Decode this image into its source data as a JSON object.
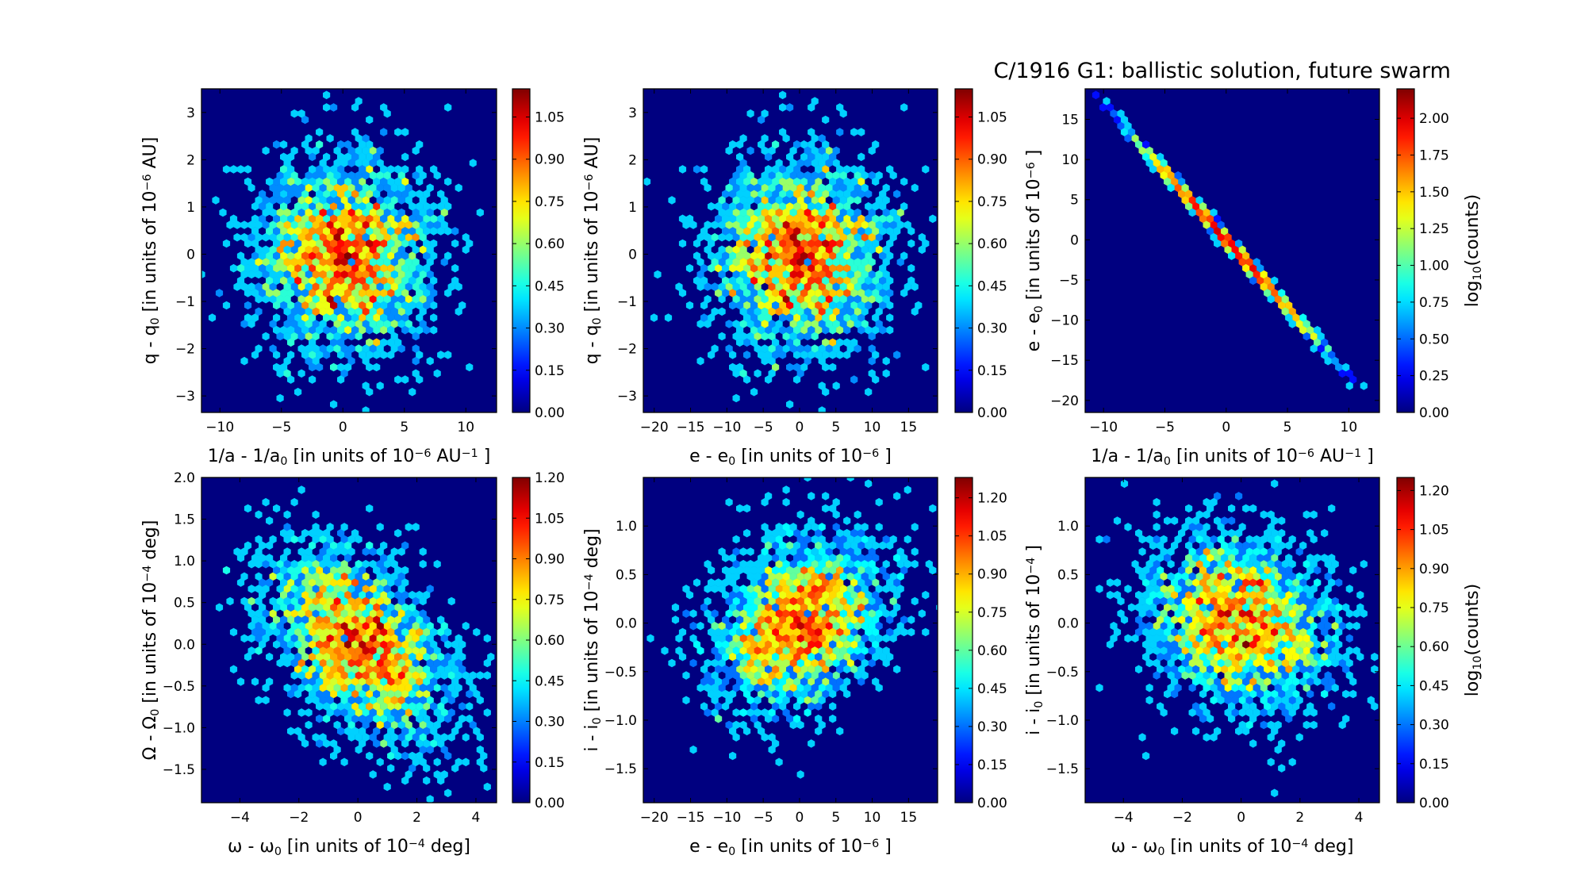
{
  "chart_data": [
    {
      "type": "heatmap",
      "subtype": "hexbin",
      "title": "",
      "xlabel": [
        {
          "t": "1/a - 1/a"
        },
        {
          "t": "0",
          "s": "sub"
        },
        {
          "t": " [in units of 10"
        },
        {
          "t": "−6",
          "s": "sup"
        },
        {
          "t": " AU"
        },
        {
          "t": "−1",
          "s": "sup"
        },
        {
          "t": " ]"
        }
      ],
      "ylabel": [
        {
          "t": "q - q"
        },
        {
          "t": "0",
          "s": "sub"
        },
        {
          "t": " [in units of 10"
        },
        {
          "t": "−6",
          "s": "sup"
        },
        {
          "t": " AU]"
        }
      ],
      "xlim": [
        -11.5,
        12.5
      ],
      "ylim": [
        -3.35,
        3.5
      ],
      "xticks": [
        "-10",
        "-5",
        "0",
        "5",
        "10"
      ],
      "yticks": [
        "-3",
        "-2",
        "-1",
        "0",
        "1",
        "2",
        "3"
      ],
      "colorbar": {
        "label": [],
        "range": [
          0,
          1.15
        ],
        "ticks": [
          "0.00",
          "0.15",
          "0.30",
          "0.45",
          "0.60",
          "0.75",
          "0.90",
          "1.05"
        ]
      },
      "distribution": {
        "n": 2600,
        "mean": [
          0,
          0
        ],
        "sd": [
          3.6,
          1.05
        ],
        "corr": 0.0,
        "slope": null,
        "seed": 11
      }
    },
    {
      "type": "heatmap",
      "subtype": "hexbin",
      "title": "",
      "xlabel": [
        {
          "t": "e - e"
        },
        {
          "t": "0",
          "s": "sub"
        },
        {
          "t": " [in units of 10"
        },
        {
          "t": "−6",
          "s": "sup"
        },
        {
          "t": " ]"
        }
      ],
      "ylabel": [
        {
          "t": "q - q"
        },
        {
          "t": "0",
          "s": "sub"
        },
        {
          "t": " [in units of 10"
        },
        {
          "t": "−6",
          "s": "sup"
        },
        {
          "t": " AU]"
        }
      ],
      "xlim": [
        -21.5,
        19
      ],
      "ylim": [
        -3.35,
        3.5
      ],
      "xticks": [
        "-20",
        "-15",
        "-10",
        "-5",
        "0",
        "5",
        "10",
        "15"
      ],
      "yticks": [
        "-3",
        "-2",
        "-1",
        "0",
        "1",
        "2",
        "3"
      ],
      "colorbar": {
        "label": [],
        "range": [
          0,
          1.15
        ],
        "ticks": [
          "0.00",
          "0.15",
          "0.30",
          "0.45",
          "0.60",
          "0.75",
          "0.90",
          "1.05"
        ]
      },
      "distribution": {
        "n": 2600,
        "mean": [
          0,
          0
        ],
        "sd": [
          6.0,
          1.05
        ],
        "corr": 0.0,
        "slope": null,
        "seed": 11
      }
    },
    {
      "type": "heatmap",
      "subtype": "hexbin",
      "title": "C/1916 G1:  ballistic solution, future swarm",
      "xlabel": [
        {
          "t": "1/a - 1/a"
        },
        {
          "t": "0",
          "s": "sub"
        },
        {
          "t": " [in units of 10"
        },
        {
          "t": "−6",
          "s": "sup"
        },
        {
          "t": " AU"
        },
        {
          "t": "−1",
          "s": "sup"
        },
        {
          "t": " ]"
        }
      ],
      "ylabel": [
        {
          "t": "e - e"
        },
        {
          "t": "0",
          "s": "sub"
        },
        {
          "t": " [in units of 10"
        },
        {
          "t": "−6",
          "s": "sup"
        },
        {
          "t": " ]"
        }
      ],
      "xlim": [
        -11.5,
        12.5
      ],
      "ylim": [
        -21.5,
        18.8
      ],
      "xticks": [
        "-10",
        "-5",
        "0",
        "5",
        "10"
      ],
      "yticks": [
        "-20",
        "-15",
        "-10",
        "-5",
        "0",
        "5",
        "10",
        "15"
      ],
      "colorbar": {
        "label": [
          {
            "t": "log"
          },
          {
            "t": "10",
            "s": "sub"
          },
          {
            "t": "(counts)"
          }
        ],
        "range": [
          0,
          2.2
        ],
        "ticks": [
          "0.00",
          "0.25",
          "0.50",
          "0.75",
          "1.00",
          "1.25",
          "1.50",
          "1.75",
          "2.00"
        ]
      },
      "distribution": {
        "n": 2600,
        "mean": [
          0,
          0
        ],
        "sd": [
          3.6,
          0.12
        ],
        "corr": 0.0,
        "slope": -1.69,
        "seed": 11
      }
    },
    {
      "type": "heatmap",
      "subtype": "hexbin",
      "title": "",
      "xlabel": [
        {
          "t": "ω - ω"
        },
        {
          "t": "0",
          "s": "sub"
        },
        {
          "t": " [in units of 10"
        },
        {
          "t": "−4",
          "s": "sup"
        },
        {
          "t": "  deg]"
        }
      ],
      "ylabel": [
        {
          "t": "Ω - Ω"
        },
        {
          "t": "0",
          "s": "sub"
        },
        {
          "t": " [in units of 10"
        },
        {
          "t": "−4",
          "s": "sup"
        },
        {
          "t": "  deg]"
        }
      ],
      "xlim": [
        -5.3,
        4.7
      ],
      "ylim": [
        -1.9,
        2.0
      ],
      "xticks": [
        "-4",
        "-2",
        "0",
        "2",
        "4"
      ],
      "yticks": [
        "-1.5",
        "-1.0",
        "-0.5",
        "0.0",
        "0.5",
        "1.0",
        "1.5",
        "2.0"
      ],
      "colorbar": {
        "label": [],
        "range": [
          0,
          1.2
        ],
        "ticks": [
          "0.00",
          "0.15",
          "0.30",
          "0.45",
          "0.60",
          "0.75",
          "0.90",
          "1.05",
          "1.20"
        ]
      },
      "distribution": {
        "n": 2600,
        "mean": [
          0,
          0
        ],
        "sd": [
          1.55,
          0.58
        ],
        "corr": -0.45,
        "slope": null,
        "seed": 23
      }
    },
    {
      "type": "heatmap",
      "subtype": "hexbin",
      "title": "",
      "xlabel": [
        {
          "t": "e - e"
        },
        {
          "t": "0",
          "s": "sub"
        },
        {
          "t": " [in units of 10"
        },
        {
          "t": "−6",
          "s": "sup"
        },
        {
          "t": " ]"
        }
      ],
      "ylabel": [
        {
          "t": "i - i"
        },
        {
          "t": "0",
          "s": "sub"
        },
        {
          "t": " [in units of 10"
        },
        {
          "t": "−4",
          "s": "sup"
        },
        {
          "t": "  deg]"
        }
      ],
      "xlim": [
        -21.5,
        19
      ],
      "ylim": [
        -1.85,
        1.5
      ],
      "xticks": [
        "-20",
        "-15",
        "-10",
        "-5",
        "0",
        "5",
        "10",
        "15"
      ],
      "yticks": [
        "-1.5",
        "-1.0",
        "-0.5",
        "0.0",
        "0.5",
        "1.0"
      ],
      "colorbar": {
        "label": [],
        "range": [
          0,
          1.28
        ],
        "ticks": [
          "0.00",
          "0.15",
          "0.30",
          "0.45",
          "0.60",
          "0.75",
          "0.90",
          "1.05",
          "1.20"
        ]
      },
      "distribution": {
        "n": 2600,
        "mean": [
          0,
          0
        ],
        "sd": [
          6.0,
          0.45
        ],
        "corr": 0.3,
        "slope": null,
        "seed": 37
      }
    },
    {
      "type": "heatmap",
      "subtype": "hexbin",
      "title": "",
      "xlabel": [
        {
          "t": "ω - ω"
        },
        {
          "t": "0",
          "s": "sub"
        },
        {
          "t": " [in units of 10"
        },
        {
          "t": "−4",
          "s": "sup"
        },
        {
          "t": "  deg]"
        }
      ],
      "ylabel": [
        {
          "t": "i - i"
        },
        {
          "t": "0",
          "s": "sub"
        },
        {
          "t": " [in units of 10"
        },
        {
          "t": "−4",
          "s": "sup"
        },
        {
          "t": " ]"
        }
      ],
      "xlim": [
        -5.3,
        4.7
      ],
      "ylim": [
        -1.85,
        1.5
      ],
      "xticks": [
        "-4",
        "-2",
        "0",
        "2",
        "4"
      ],
      "yticks": [
        "-1.5",
        "-1.0",
        "-0.5",
        "0.0",
        "0.5",
        "1.0"
      ],
      "colorbar": {
        "label": [
          {
            "t": "log"
          },
          {
            "t": "10",
            "s": "sub"
          },
          {
            "t": "(counts)"
          }
        ],
        "range": [
          0,
          1.25
        ],
        "ticks": [
          "0.00",
          "0.15",
          "0.30",
          "0.45",
          "0.60",
          "0.75",
          "0.90",
          "1.05",
          "1.20"
        ]
      },
      "distribution": {
        "n": 2600,
        "mean": [
          0,
          0
        ],
        "sd": [
          1.55,
          0.45
        ],
        "corr": -0.15,
        "slope": null,
        "seed": 41
      }
    }
  ]
}
